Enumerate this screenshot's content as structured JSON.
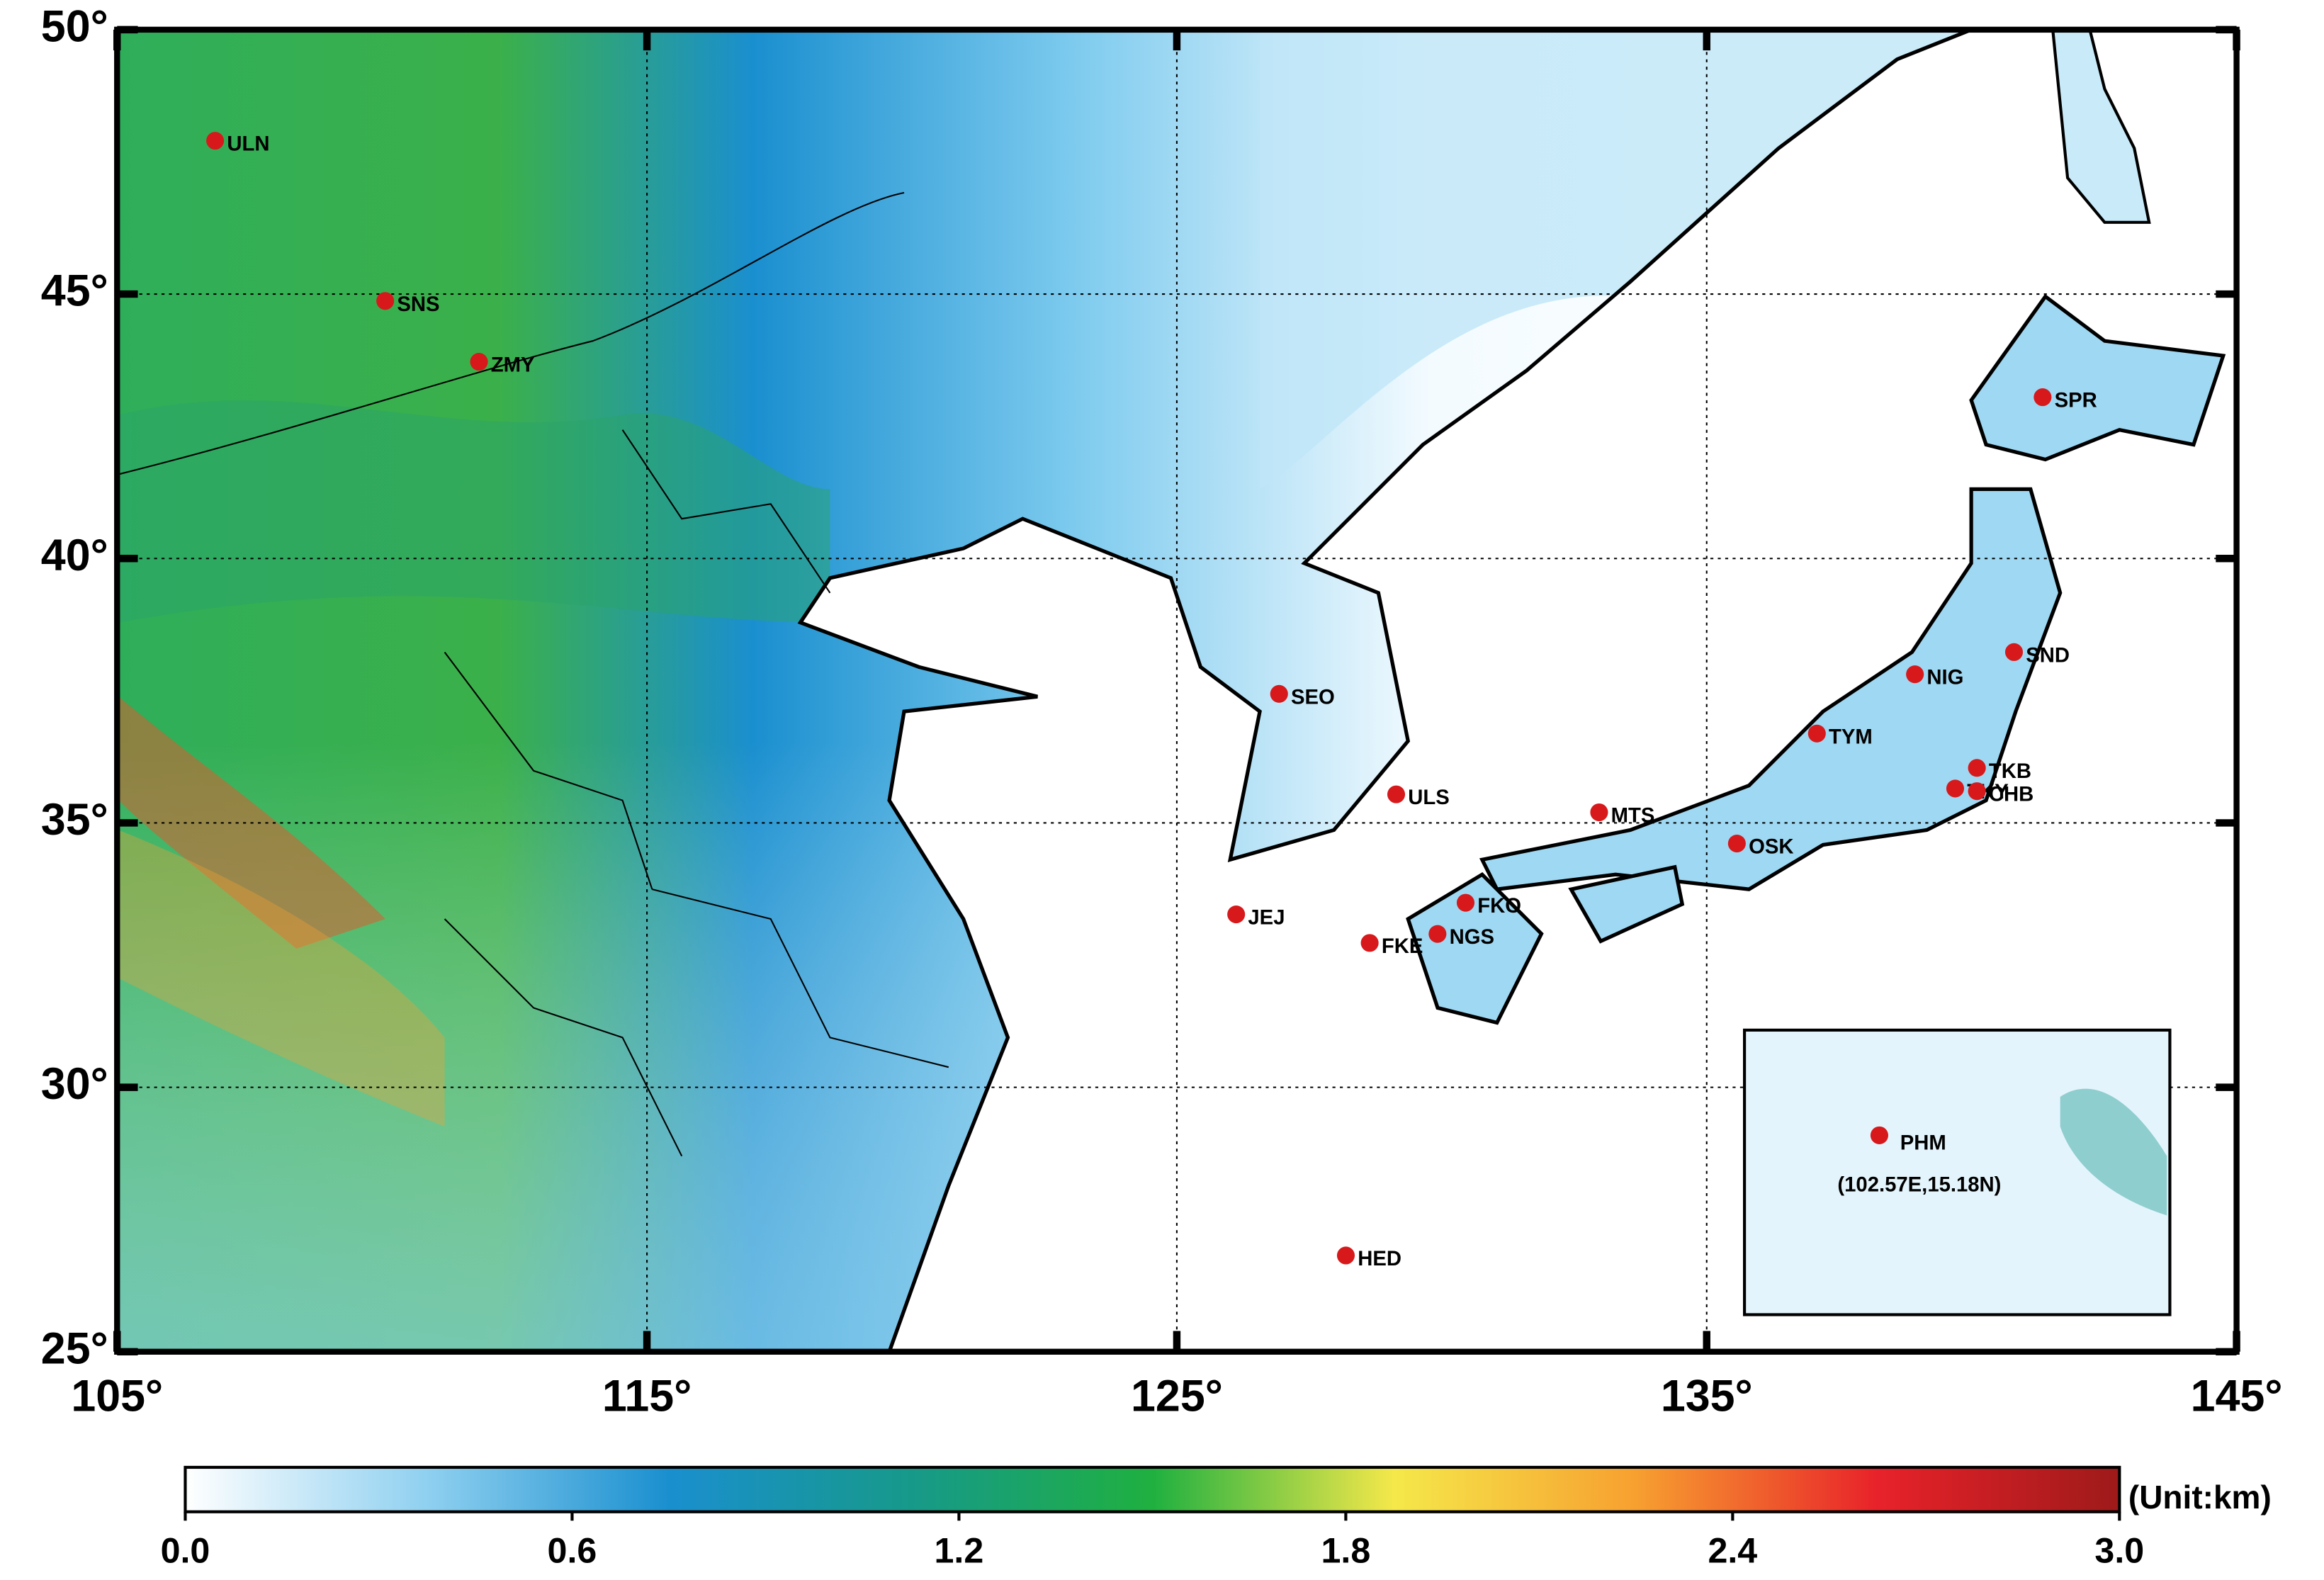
{
  "map": {
    "xlim": [
      105,
      145
    ],
    "ylim": [
      25,
      50
    ],
    "xticks": [
      {
        "value": 105,
        "label": "105°"
      },
      {
        "value": 115,
        "label": "115°"
      },
      {
        "value": 125,
        "label": "125°"
      },
      {
        "value": 135,
        "label": "135°"
      },
      {
        "value": 145,
        "label": "145°"
      }
    ],
    "yticks": [
      {
        "value": 25,
        "label": "25°"
      },
      {
        "value": 30,
        "label": "30°"
      },
      {
        "value": 35,
        "label": "35°"
      },
      {
        "value": 40,
        "label": "40°"
      },
      {
        "value": 45,
        "label": "45°"
      },
      {
        "value": 50,
        "label": "50°"
      }
    ],
    "grid": true,
    "station_color": "#d7191c",
    "stations": [
      {
        "name": "ULN",
        "lon": 106.85,
        "lat": 47.9
      },
      {
        "name": "SNS",
        "lon": 110.06,
        "lat": 44.87
      },
      {
        "name": "ZMY",
        "lon": 111.83,
        "lat": 43.72
      },
      {
        "name": "SEO",
        "lon": 126.93,
        "lat": 37.44
      },
      {
        "name": "ULS",
        "lon": 129.14,
        "lat": 35.54
      },
      {
        "name": "JEJ",
        "lon": 126.12,
        "lat": 33.27
      },
      {
        "name": "MTS",
        "lon": 132.97,
        "lat": 35.2
      },
      {
        "name": "OSK",
        "lon": 135.57,
        "lat": 34.61
      },
      {
        "name": "FKO",
        "lon": 130.45,
        "lat": 33.49
      },
      {
        "name": "NGS",
        "lon": 129.92,
        "lat": 32.9
      },
      {
        "name": "FKE",
        "lon": 128.64,
        "lat": 32.73
      },
      {
        "name": "HED",
        "lon": 128.19,
        "lat": 26.82
      },
      {
        "name": "TYM",
        "lon": 137.08,
        "lat": 36.69
      },
      {
        "name": "NIG",
        "lon": 138.93,
        "lat": 37.81
      },
      {
        "name": "SND",
        "lon": 140.8,
        "lat": 38.23
      },
      {
        "name": "TKB",
        "lon": 140.1,
        "lat": 36.04
      },
      {
        "name": "TKY",
        "lon": 139.69,
        "lat": 35.65
      },
      {
        "name": "CHB",
        "lon": 140.1,
        "lat": 35.6
      },
      {
        "name": "SPR",
        "lon": 141.34,
        "lat": 43.05
      }
    ],
    "inset": {
      "station": "PHM",
      "coordinates": "(102.57E,15.18N)"
    },
    "colorbar": {
      "unit": "(Unit:km)",
      "range": [
        0,
        3
      ],
      "ticks": [
        {
          "value": 0,
          "label": "0.0"
        },
        {
          "value": 0.6,
          "label": "0.6"
        },
        {
          "value": 1.2,
          "label": "1.2"
        },
        {
          "value": 1.8,
          "label": "1.8"
        },
        {
          "value": 2.4,
          "label": "2.4"
        },
        {
          "value": 3,
          "label": "3.0"
        }
      ],
      "colors": [
        "#ffffff",
        "#8fd0f0",
        "#1a8fcf",
        "#17998a",
        "#1fb040",
        "#f5e84a",
        "#f7a030",
        "#e8222a",
        "#9e1a1a"
      ]
    }
  }
}
